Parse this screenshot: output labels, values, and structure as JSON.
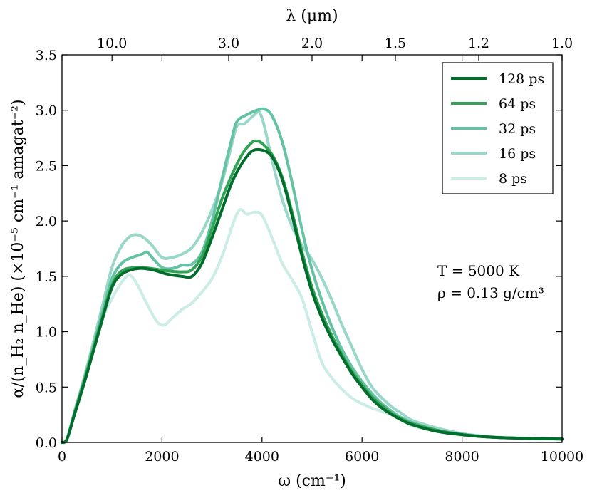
{
  "chart_data": {
    "type": "line",
    "title": "",
    "xlabel": "ω (cm⁻¹)",
    "ylabel": "α/(n_H₂ n_He) (×10⁻⁵ cm⁻¹ amagat⁻²)",
    "x2label": "λ (μm)",
    "xlim": [
      0,
      10000
    ],
    "ylim": [
      0.0,
      3.5
    ],
    "xticks": [
      0,
      2000,
      4000,
      6000,
      8000,
      10000
    ],
    "xtick_labels": [
      "0",
      "2000",
      "4000",
      "6000",
      "8000",
      "10000"
    ],
    "yticks": [
      0.0,
      0.5,
      1.0,
      1.5,
      2.0,
      2.5,
      3.0,
      3.5
    ],
    "ytick_labels": [
      "0.0",
      "0.5",
      "1.0",
      "1.5",
      "2.0",
      "2.5",
      "3.0",
      "3.5"
    ],
    "top_ticks": [
      {
        "wavelength_um": 10.0,
        "label": "10.0"
      },
      {
        "wavelength_um": 3.0,
        "label": "3.0"
      },
      {
        "wavelength_um": 2.0,
        "label": "2.0"
      },
      {
        "wavelength_um": 1.5,
        "label": "1.5"
      },
      {
        "wavelength_um": 1.2,
        "label": "1.2"
      },
      {
        "wavelength_um": 1.0,
        "label": "1.0"
      }
    ],
    "legend_position": "top-right",
    "annotations": [
      "T = 5000 K",
      "ρ = 0.13 g/cm³"
    ],
    "series": [
      {
        "name": "128 ps",
        "color": "#006d2c",
        "points": [
          [
            0,
            0
          ],
          [
            100,
            0.03
          ],
          [
            250,
            0.25
          ],
          [
            500,
            0.62
          ],
          [
            800,
            1.1
          ],
          [
            1000,
            1.4
          ],
          [
            1200,
            1.52
          ],
          [
            1500,
            1.57
          ],
          [
            1800,
            1.56
          ],
          [
            2100,
            1.52
          ],
          [
            2400,
            1.5
          ],
          [
            2600,
            1.5
          ],
          [
            2800,
            1.62
          ],
          [
            3000,
            1.85
          ],
          [
            3200,
            2.1
          ],
          [
            3400,
            2.35
          ],
          [
            3600,
            2.52
          ],
          [
            3800,
            2.63
          ],
          [
            4000,
            2.64
          ],
          [
            4200,
            2.58
          ],
          [
            4400,
            2.38
          ],
          [
            4600,
            2.05
          ],
          [
            4800,
            1.68
          ],
          [
            5000,
            1.36
          ],
          [
            5200,
            1.12
          ],
          [
            5400,
            0.93
          ],
          [
            5600,
            0.77
          ],
          [
            5800,
            0.62
          ],
          [
            6000,
            0.5
          ],
          [
            6200,
            0.39
          ],
          [
            6400,
            0.31
          ],
          [
            6600,
            0.25
          ],
          [
            6800,
            0.2
          ],
          [
            7000,
            0.16
          ],
          [
            7500,
            0.1
          ],
          [
            8000,
            0.07
          ],
          [
            8500,
            0.05
          ],
          [
            9000,
            0.04
          ],
          [
            10000,
            0.03
          ]
        ]
      },
      {
        "name": "64 ps",
        "color": "#31a354",
        "points": [
          [
            0,
            0
          ],
          [
            100,
            0.03
          ],
          [
            250,
            0.26
          ],
          [
            500,
            0.64
          ],
          [
            800,
            1.12
          ],
          [
            1000,
            1.42
          ],
          [
            1200,
            1.55
          ],
          [
            1500,
            1.58
          ],
          [
            1800,
            1.57
          ],
          [
            2100,
            1.55
          ],
          [
            2400,
            1.54
          ],
          [
            2600,
            1.56
          ],
          [
            2800,
            1.68
          ],
          [
            3000,
            1.93
          ],
          [
            3200,
            2.2
          ],
          [
            3400,
            2.42
          ],
          [
            3600,
            2.6
          ],
          [
            3800,
            2.71
          ],
          [
            3900,
            2.72
          ],
          [
            4000,
            2.7
          ],
          [
            4200,
            2.6
          ],
          [
            4400,
            2.4
          ],
          [
            4600,
            2.08
          ],
          [
            4800,
            1.72
          ],
          [
            5000,
            1.4
          ],
          [
            5200,
            1.16
          ],
          [
            5400,
            0.96
          ],
          [
            5600,
            0.79
          ],
          [
            5800,
            0.64
          ],
          [
            6000,
            0.52
          ],
          [
            6200,
            0.41
          ],
          [
            6400,
            0.33
          ],
          [
            6600,
            0.26
          ],
          [
            6800,
            0.21
          ],
          [
            7000,
            0.17
          ],
          [
            7500,
            0.11
          ],
          [
            8000,
            0.07
          ],
          [
            8500,
            0.05
          ],
          [
            9000,
            0.04
          ],
          [
            10000,
            0.03
          ]
        ]
      },
      {
        "name": "32 ps",
        "color": "#66c2a4",
        "points": [
          [
            0,
            0
          ],
          [
            100,
            0.03
          ],
          [
            250,
            0.27
          ],
          [
            500,
            0.66
          ],
          [
            800,
            1.16
          ],
          [
            1000,
            1.48
          ],
          [
            1200,
            1.62
          ],
          [
            1400,
            1.67
          ],
          [
            1600,
            1.7
          ],
          [
            1700,
            1.72
          ],
          [
            1800,
            1.67
          ],
          [
            2000,
            1.58
          ],
          [
            2200,
            1.57
          ],
          [
            2400,
            1.6
          ],
          [
            2600,
            1.61
          ],
          [
            2800,
            1.72
          ],
          [
            3000,
            2.0
          ],
          [
            3200,
            2.38
          ],
          [
            3400,
            2.75
          ],
          [
            3500,
            2.9
          ],
          [
            3700,
            2.96
          ],
          [
            3900,
            3.0
          ],
          [
            4050,
            3.01
          ],
          [
            4200,
            2.95
          ],
          [
            4400,
            2.72
          ],
          [
            4600,
            2.35
          ],
          [
            4800,
            1.92
          ],
          [
            5000,
            1.56
          ],
          [
            5200,
            1.28
          ],
          [
            5400,
            1.04
          ],
          [
            5600,
            0.84
          ],
          [
            5800,
            0.68
          ],
          [
            6000,
            0.55
          ],
          [
            6200,
            0.44
          ],
          [
            6400,
            0.35
          ],
          [
            6600,
            0.28
          ],
          [
            6800,
            0.22
          ],
          [
            7000,
            0.18
          ],
          [
            7500,
            0.11
          ],
          [
            8000,
            0.075
          ],
          [
            8500,
            0.05
          ],
          [
            9000,
            0.04
          ],
          [
            10000,
            0.03
          ]
        ]
      },
      {
        "name": "16 ps",
        "color": "#99d8c9",
        "points": [
          [
            0,
            0
          ],
          [
            100,
            0.03
          ],
          [
            250,
            0.28
          ],
          [
            500,
            0.68
          ],
          [
            800,
            1.22
          ],
          [
            1000,
            1.58
          ],
          [
            1200,
            1.78
          ],
          [
            1400,
            1.87
          ],
          [
            1600,
            1.86
          ],
          [
            1800,
            1.78
          ],
          [
            2000,
            1.67
          ],
          [
            2200,
            1.67
          ],
          [
            2400,
            1.7
          ],
          [
            2600,
            1.76
          ],
          [
            2800,
            1.9
          ],
          [
            3000,
            2.1
          ],
          [
            3200,
            2.35
          ],
          [
            3400,
            2.7
          ],
          [
            3500,
            2.86
          ],
          [
            3650,
            2.88
          ],
          [
            3850,
            2.96
          ],
          [
            3950,
            2.98
          ],
          [
            4050,
            2.85
          ],
          [
            4200,
            2.55
          ],
          [
            4400,
            2.2
          ],
          [
            4600,
            1.95
          ],
          [
            4800,
            1.78
          ],
          [
            5000,
            1.65
          ],
          [
            5200,
            1.48
          ],
          [
            5400,
            1.28
          ],
          [
            5600,
            1.06
          ],
          [
            5800,
            0.86
          ],
          [
            6000,
            0.66
          ],
          [
            6200,
            0.5
          ],
          [
            6400,
            0.4
          ],
          [
            6600,
            0.32
          ],
          [
            6800,
            0.26
          ],
          [
            7000,
            0.2
          ],
          [
            7500,
            0.13
          ],
          [
            8000,
            0.08
          ],
          [
            8500,
            0.055
          ],
          [
            9000,
            0.04
          ],
          [
            10000,
            0.03
          ]
        ]
      },
      {
        "name": "8 ps",
        "color": "#ccece6",
        "points": [
          [
            0,
            0
          ],
          [
            100,
            0.02
          ],
          [
            250,
            0.26
          ],
          [
            500,
            0.65
          ],
          [
            800,
            1.1
          ],
          [
            1000,
            1.3
          ],
          [
            1200,
            1.45
          ],
          [
            1350,
            1.51
          ],
          [
            1500,
            1.43
          ],
          [
            1700,
            1.25
          ],
          [
            1900,
            1.09
          ],
          [
            2050,
            1.06
          ],
          [
            2200,
            1.12
          ],
          [
            2400,
            1.2
          ],
          [
            2600,
            1.26
          ],
          [
            2800,
            1.36
          ],
          [
            3000,
            1.48
          ],
          [
            3200,
            1.68
          ],
          [
            3400,
            1.95
          ],
          [
            3550,
            2.1
          ],
          [
            3700,
            2.06
          ],
          [
            3850,
            2.08
          ],
          [
            4000,
            2.05
          ],
          [
            4200,
            1.85
          ],
          [
            4400,
            1.62
          ],
          [
            4600,
            1.47
          ],
          [
            4800,
            1.3
          ],
          [
            5000,
            1.0
          ],
          [
            5200,
            0.72
          ],
          [
            5400,
            0.58
          ],
          [
            5600,
            0.48
          ],
          [
            5800,
            0.4
          ],
          [
            6000,
            0.35
          ],
          [
            6200,
            0.31
          ],
          [
            6400,
            0.28
          ],
          [
            6600,
            0.25
          ],
          [
            6800,
            0.2
          ],
          [
            7000,
            0.15
          ],
          [
            7500,
            0.1
          ],
          [
            8000,
            0.065
          ],
          [
            8500,
            0.05
          ],
          [
            9000,
            0.04
          ],
          [
            10000,
            0.03
          ]
        ]
      }
    ]
  }
}
